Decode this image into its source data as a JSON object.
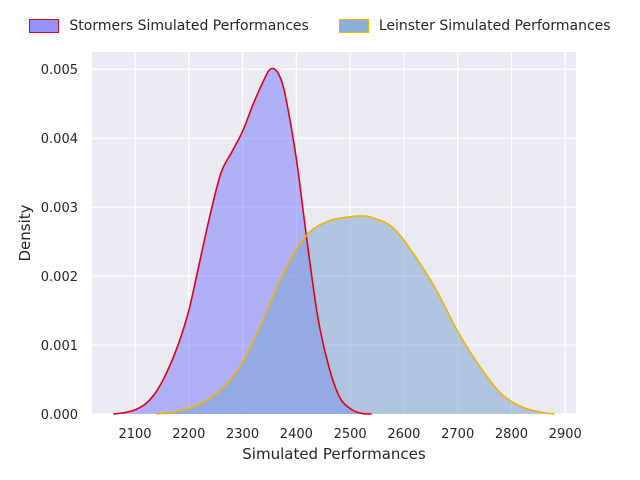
{
  "chart_data": {
    "type": "area",
    "title": "",
    "xlabel": "Simulated Performances",
    "ylabel": "Density",
    "xlim": [
      2020,
      2920
    ],
    "ylim": [
      0,
      0.00525
    ],
    "x_ticks": [
      2100,
      2200,
      2300,
      2400,
      2500,
      2600,
      2700,
      2800,
      2900
    ],
    "y_ticks": [
      0.0,
      0.001,
      0.002,
      0.003,
      0.004,
      0.005
    ],
    "y_tick_labels": [
      "0.000",
      "0.001",
      "0.002",
      "0.003",
      "0.004",
      "0.005"
    ],
    "grid": true,
    "legend_position": "top-center",
    "series": [
      {
        "name": "Stormers Simulated Performances",
        "fill_color": "#8080ff",
        "line_color": "#e0001a",
        "points": [
          [
            2060,
            0.0
          ],
          [
            2080,
            2e-05
          ],
          [
            2100,
            6e-05
          ],
          [
            2120,
            0.00015
          ],
          [
            2140,
            0.00033
          ],
          [
            2160,
            0.00062
          ],
          [
            2180,
            0.001
          ],
          [
            2200,
            0.0015
          ],
          [
            2220,
            0.0022
          ],
          [
            2240,
            0.0029
          ],
          [
            2260,
            0.0035
          ],
          [
            2280,
            0.0038
          ],
          [
            2300,
            0.0041
          ],
          [
            2320,
            0.0045
          ],
          [
            2340,
            0.00485
          ],
          [
            2350,
            0.00499
          ],
          [
            2360,
            0.005
          ],
          [
            2370,
            0.00488
          ],
          [
            2380,
            0.0046
          ],
          [
            2400,
            0.0037
          ],
          [
            2420,
            0.0025
          ],
          [
            2440,
            0.0014
          ],
          [
            2460,
            0.0007
          ],
          [
            2480,
            0.00025
          ],
          [
            2500,
            8e-05
          ],
          [
            2520,
            1e-05
          ],
          [
            2540,
            0.0
          ]
        ]
      },
      {
        "name": "Leinster Simulated Performances",
        "fill_color": "#7ea6d0",
        "line_color": "#f0b400",
        "points": [
          [
            2140,
            0.0
          ],
          [
            2180,
            4e-05
          ],
          [
            2220,
            0.00014
          ],
          [
            2260,
            0.00035
          ],
          [
            2300,
            0.00075
          ],
          [
            2340,
            0.0014
          ],
          [
            2380,
            0.0021
          ],
          [
            2420,
            0.0026
          ],
          [
            2460,
            0.0028
          ],
          [
            2500,
            0.00286
          ],
          [
            2520,
            0.00287
          ],
          [
            2540,
            0.00285
          ],
          [
            2580,
            0.0027
          ],
          [
            2620,
            0.0023
          ],
          [
            2660,
            0.0018
          ],
          [
            2700,
            0.0012
          ],
          [
            2740,
            0.0007
          ],
          [
            2780,
            0.0003
          ],
          [
            2820,
            0.0001
          ],
          [
            2860,
            2e-05
          ],
          [
            2880,
            0.0
          ]
        ]
      }
    ]
  }
}
